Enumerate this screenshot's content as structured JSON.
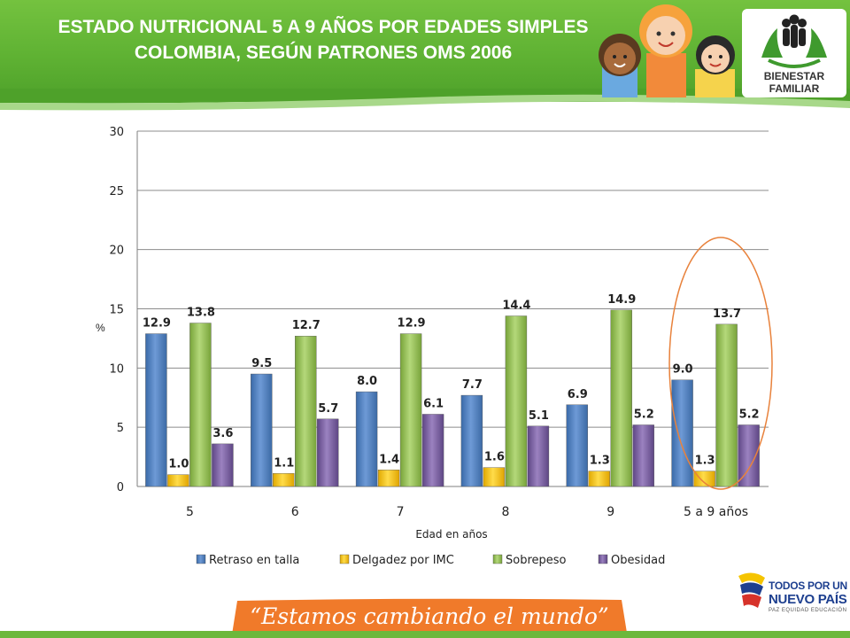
{
  "header": {
    "title_line1": "ESTADO NUTRICIONAL 5 A 9 AÑOS POR EDADES SIMPLES",
    "title_line2": "COLOMBIA, SEGÚN PATRONES OMS 2006",
    "logo_line1": "BIENESTAR",
    "logo_line2": "FAMILIAR",
    "logo_icon": "family-hands-icon"
  },
  "chart_data": {
    "type": "bar",
    "categories": [
      "5",
      "6",
      "7",
      "8",
      "9",
      "5 a 9 años"
    ],
    "series": [
      {
        "name": "Retraso en talla",
        "color": "#4f81bd",
        "values": [
          12.9,
          9.5,
          8.0,
          7.7,
          6.9,
          9.0
        ]
      },
      {
        "name": "Delgadez por IMC",
        "color": "#ffc000",
        "values": [
          1.0,
          1.1,
          1.4,
          1.6,
          1.3,
          1.3
        ]
      },
      {
        "name": "Sobrepeso",
        "color": "#9bbb59",
        "values": [
          13.8,
          12.7,
          12.9,
          14.4,
          14.9,
          13.7
        ]
      },
      {
        "name": "Obesidad",
        "color": "#8064a2",
        "values": [
          3.6,
          5.7,
          6.1,
          5.1,
          5.2,
          5.2
        ]
      }
    ],
    "value_labels": [
      [
        "12.9",
        "9.5",
        "8.0",
        "7.7",
        "6.9",
        "9.0"
      ],
      [
        "1.0",
        "1.1",
        "1.4",
        "1.6",
        "1.3",
        "1.3"
      ],
      [
        "13.8",
        "12.7",
        "12.9",
        "14.4",
        "14.9",
        "13.7"
      ],
      [
        "3.6",
        "5.7",
        "6.1",
        "5.1",
        "5.2",
        "5.2"
      ]
    ],
    "y_ticks": [
      "0",
      "5",
      "10",
      "15",
      "20",
      "25",
      "30"
    ],
    "ylim": [
      0,
      30
    ],
    "xlabel": "Edad en años",
    "ylabel": "%",
    "legend_position": "bottom",
    "grid": true,
    "highlight": "5 a 9 años"
  },
  "footer": {
    "slogan": "“Estamos cambiando el mundo”",
    "gov_line1": "TODOS POR UN",
    "gov_line2": "NUEVO PAÍS",
    "gov_line3": "PAZ  EQUIDAD  EDUCACIÓN"
  }
}
